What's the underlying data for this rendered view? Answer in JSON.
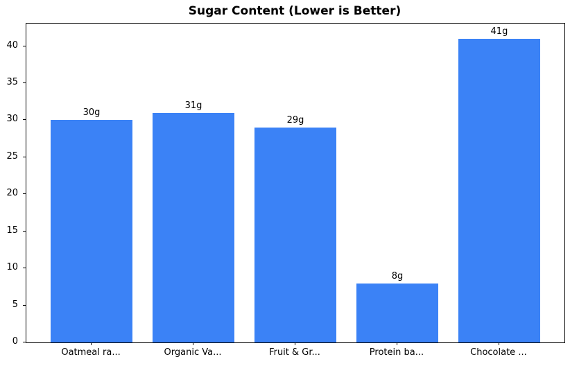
{
  "chart_data": {
    "type": "bar",
    "title": "Sugar Content (Lower is Better)",
    "categories": [
      "Oatmeal ra...",
      "Organic Va...",
      "Fruit & Gr...",
      "Protein ba...",
      "Chocolate ..."
    ],
    "values": [
      30,
      31,
      29,
      8,
      41
    ],
    "bar_labels": [
      "30g",
      "31g",
      "29g",
      "8g",
      "41g"
    ],
    "yticks": [
      0,
      5,
      10,
      15,
      20,
      25,
      30,
      35,
      40
    ],
    "ylim": [
      0,
      43.05
    ],
    "xlim": [
      -0.64,
      4.64
    ],
    "bar_width_ratio": 0.8,
    "bar_color": "#3b82f6",
    "text_color": "#000000",
    "grid": false,
    "legend": "none",
    "xlabel": "",
    "ylabel": ""
  }
}
